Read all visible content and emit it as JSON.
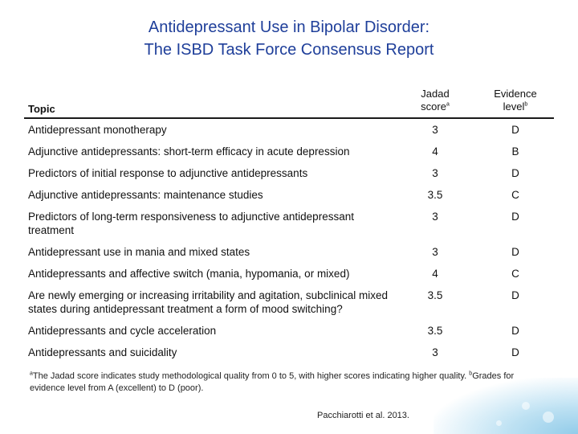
{
  "title": {
    "line1": "Antidepressant Use in Bipolar Disorder:",
    "line2": "The ISBD Task Force Consensus Report"
  },
  "table": {
    "headers": {
      "topic": "Topic",
      "jadad_line1": "Jadad",
      "jadad_line2": "score",
      "jadad_sup": "a",
      "evidence_line1": "Evidence",
      "evidence_line2": "level",
      "evidence_sup": "b"
    },
    "rows": [
      {
        "topic": "Antidepressant monotherapy",
        "jadad": "3",
        "evidence": "D"
      },
      {
        "topic": "Adjunctive antidepressants: short-term efficacy in acute depression",
        "jadad": "4",
        "evidence": "B"
      },
      {
        "topic": "Predictors of initial response to adjunctive antidepressants",
        "jadad": "3",
        "evidence": "D"
      },
      {
        "topic": "Adjunctive antidepressants: maintenance studies",
        "jadad": "3.5",
        "evidence": "C"
      },
      {
        "topic": "Predictors of long-term responsiveness to adjunctive antidepressant treatment",
        "jadad": "3",
        "evidence": "D"
      },
      {
        "topic": "Antidepressant use in mania and mixed states",
        "jadad": "3",
        "evidence": "D"
      },
      {
        "topic": "Antidepressants and affective switch (mania, hypomania, or mixed)",
        "jadad": "4",
        "evidence": "C"
      },
      {
        "topic": "Are newly emerging or increasing irritability and agitation, subclinical mixed states during antidepressant treatment a form of mood switching?",
        "jadad": "3.5",
        "evidence": "D"
      },
      {
        "topic": "Antidepressants and cycle acceleration",
        "jadad": "3.5",
        "evidence": "D"
      },
      {
        "topic": "Antidepressants and suicidality",
        "jadad": "3",
        "evidence": "D"
      }
    ]
  },
  "footnote": {
    "sup_a": "a",
    "text_a": "The Jadad score indicates study methodological quality from 0 to 5, with higher scores indicating higher quality.",
    "sup_b": "b",
    "text_b": "Grades for evidence level from A (excellent) to D (poor)."
  },
  "citation": "Pacchiarotti et al. 2013."
}
